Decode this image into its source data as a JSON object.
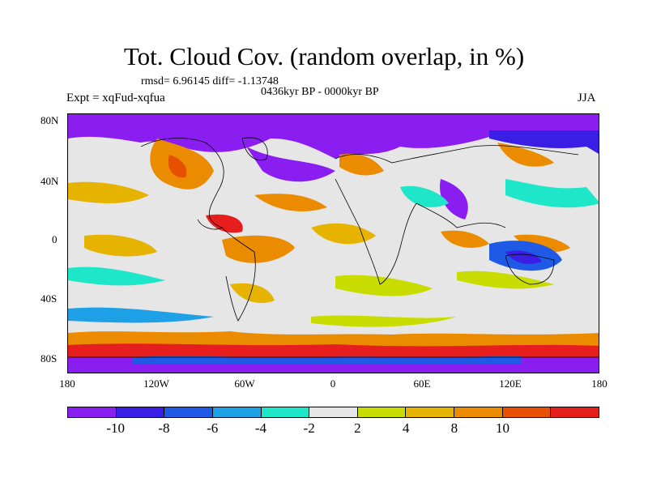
{
  "title": "Tot. Cloud Cov. (random overlap, in %)",
  "stats": "rmsd= 6.96145 diff= -1.13748",
  "period": "0436kyr BP - 0000kyr BP",
  "experiment": "Expt = xqFud-xqfua",
  "season": "JJA",
  "lat_labels": [
    "80N",
    "40N",
    "0",
    "40S",
    "80S"
  ],
  "lon_labels": [
    "180",
    "120W",
    "60W",
    "0",
    "60E",
    "120E",
    "180"
  ],
  "colorbar": {
    "colors": [
      "#8a1ef0",
      "#3a1ee6",
      "#1e5ae6",
      "#1ea0e6",
      "#1ee6c8",
      "#e6e6e6",
      "#c8dc00",
      "#e6b400",
      "#eb8c00",
      "#e65000",
      "#e61e1e"
    ],
    "labels": [
      "-10",
      "-8",
      "-6",
      "-4",
      "-2",
      "2",
      "4",
      "8",
      "10"
    ]
  },
  "map_layers": [
    {
      "name": "arctic-cloud-decrease",
      "color": "#8a1ef0"
    },
    {
      "name": "antarctic-cloud-band",
      "color": "#e65000"
    }
  ]
}
